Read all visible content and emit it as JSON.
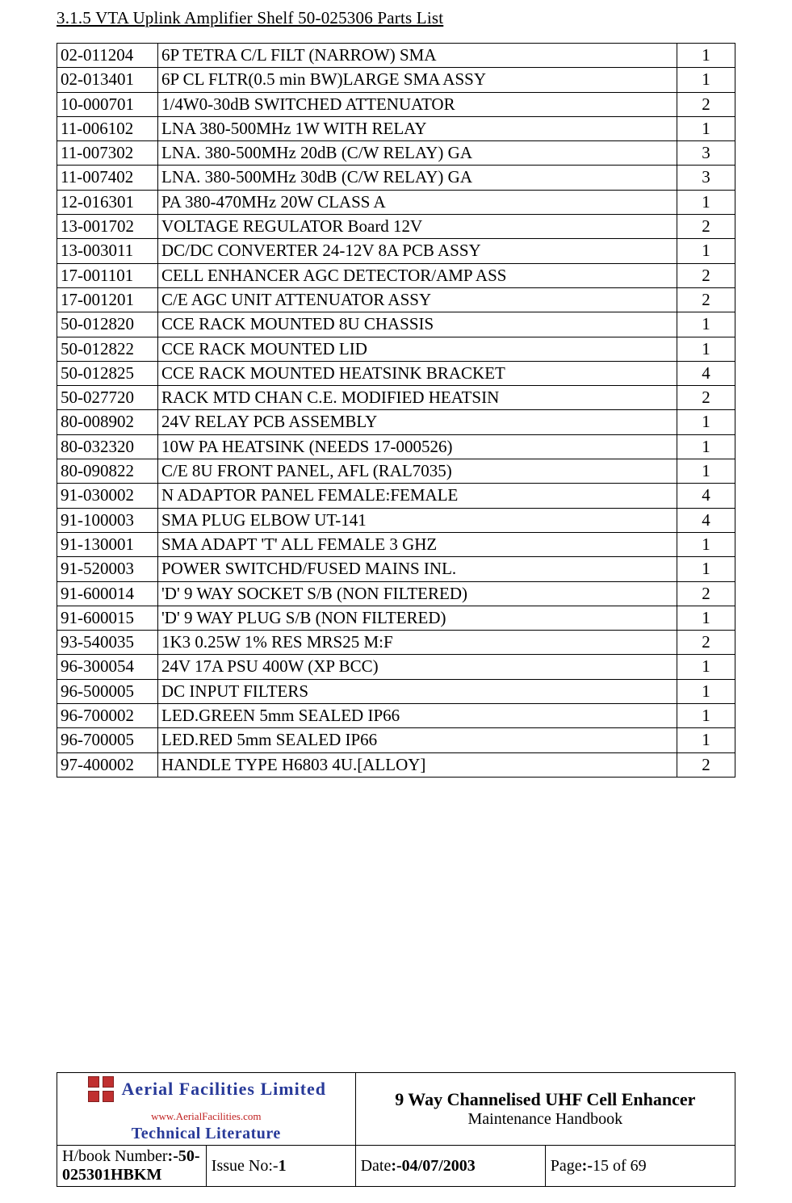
{
  "section_title": "3.1.5    VTA Uplink Amplifier Shelf 50-025306 Parts List",
  "parts": [
    {
      "pn": "02-011204",
      "desc": "6P TETRA C/L FILT (NARROW) SMA",
      "qty": "1"
    },
    {
      "pn": "02-013401",
      "desc": "6P CL FLTR(0.5 min BW)LARGE SMA ASSY",
      "qty": "1"
    },
    {
      "pn": "10-000701",
      "desc": "1/4W0-30dB SWITCHED ATTENUATOR",
      "qty": "2"
    },
    {
      "pn": "11-006102",
      "desc": "LNA 380-500MHz 1W WITH RELAY",
      "qty": "1"
    },
    {
      "pn": "11-007302",
      "desc": "LNA. 380-500MHz 20dB (C/W RELAY) GA",
      "qty": "3"
    },
    {
      "pn": "11-007402",
      "desc": "LNA. 380-500MHz 30dB (C/W RELAY) GA",
      "qty": "3"
    },
    {
      "pn": "12-016301",
      "desc": "PA 380-470MHz 20W CLASS A",
      "qty": "1"
    },
    {
      "pn": "13-001702",
      "desc": "VOLTAGE REGULATOR Board 12V",
      "qty": "2"
    },
    {
      "pn": "13-003011",
      "desc": "DC/DC CONVERTER 24-12V 8A PCB ASSY",
      "qty": "1"
    },
    {
      "pn": "17-001101",
      "desc": "CELL ENHANCER AGC DETECTOR/AMP ASS",
      "qty": "2"
    },
    {
      "pn": "17-001201",
      "desc": "C/E AGC UNIT ATTENUATOR ASSY",
      "qty": "2"
    },
    {
      "pn": "50-012820",
      "desc": "CCE RACK MOUNTED 8U CHASSIS",
      "qty": "1"
    },
    {
      "pn": "50-012822",
      "desc": "CCE RACK MOUNTED LID",
      "qty": "1"
    },
    {
      "pn": "50-012825",
      "desc": "CCE RACK MOUNTED HEATSINK BRACKET",
      "qty": "4"
    },
    {
      "pn": "50-027720",
      "desc": "RACK MTD CHAN C.E. MODIFIED HEATSIN",
      "qty": "2"
    },
    {
      "pn": "80-008902",
      "desc": "24V RELAY PCB ASSEMBLY",
      "qty": "1"
    },
    {
      "pn": "80-032320",
      "desc": "10W PA HEATSINK  (NEEDS 17-000526)",
      "qty": "1"
    },
    {
      "pn": "80-090822",
      "desc": "C/E 8U FRONT PANEL, AFL (RAL7035)",
      "qty": "1"
    },
    {
      "pn": "91-030002",
      "desc": "N ADAPTOR PANEL FEMALE:FEMALE",
      "qty": "4"
    },
    {
      "pn": "91-100003",
      "desc": "SMA PLUG ELBOW UT-141",
      "qty": "4"
    },
    {
      "pn": "91-130001",
      "desc": "SMA ADAPT 'T' ALL FEMALE 3 GHZ",
      "qty": "1"
    },
    {
      "pn": "91-520003",
      "desc": "POWER SWITCHD/FUSED MAINS INL.",
      "qty": "1"
    },
    {
      "pn": "91-600014",
      "desc": "'D' 9 WAY SOCKET S/B (NON FILTERED)",
      "qty": "2"
    },
    {
      "pn": "91-600015",
      "desc": "'D' 9 WAY PLUG S/B (NON FILTERED)",
      "qty": "1"
    },
    {
      "pn": "93-540035",
      "desc": "1K3 0.25W 1% RES MRS25 M:F",
      "qty": "2"
    },
    {
      "pn": "96-300054",
      "desc": "24V 17A PSU 400W (XP BCC)",
      "qty": "1"
    },
    {
      "pn": "96-500005",
      "desc": "DC INPUT FILTERS",
      "qty": "1"
    },
    {
      "pn": "96-700002",
      "desc": "LED.GREEN 5mm SEALED IP66",
      "qty": "1"
    },
    {
      "pn": "96-700005",
      "desc": "LED.RED 5mm SEALED IP66",
      "qty": "1"
    },
    {
      "pn": "97-400002",
      "desc": "HANDLE TYPE H6803 4U.[ALLOY]",
      "qty": "2"
    }
  ],
  "brand": {
    "line1": "Aerial  Facilities  Limited",
    "url": "www.AerialFacilities.com",
    "line3": "Technical Literature"
  },
  "doc": {
    "title": "9 Way Channelised UHF Cell Enhancer",
    "subtitle": "Maintenance Handbook"
  },
  "footer": {
    "hbook_label": "H/book Number",
    "hbook_value": ":-50-025301HBKM",
    "issue_label": "Issue No:-",
    "issue_value": "1",
    "date_label": "Date",
    "date_value": ":-04/07/2003",
    "page_label": "Page",
    "page_value_prefix": ":-",
    "page_current": "15",
    "page_of": " of 69"
  }
}
